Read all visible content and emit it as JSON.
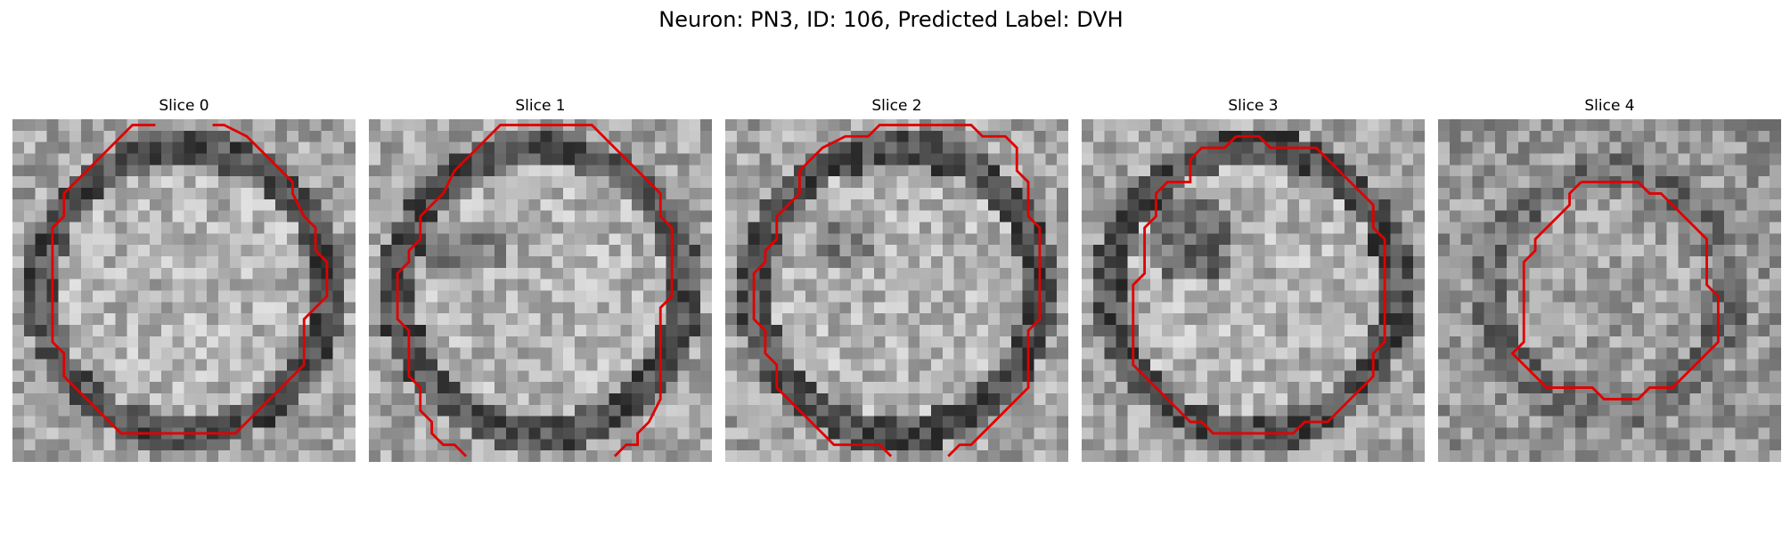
{
  "figure": {
    "title": "Neuron: PN3, ID: 106, Predicted Label: DVH",
    "neuron": "PN3",
    "id": 106,
    "predicted_label": "DVH"
  },
  "slices": [
    {
      "title": "Slice 0",
      "contour_color": "#e00000",
      "seed": 11,
      "style": "ring"
    },
    {
      "title": "Slice 1",
      "contour_color": "#e00000",
      "seed": 29,
      "style": "ring-dark"
    },
    {
      "title": "Slice 2",
      "contour_color": "#e00000",
      "seed": 47,
      "style": "textured"
    },
    {
      "title": "Slice 3",
      "contour_color": "#e00000",
      "seed": 83,
      "style": "dark-blob"
    },
    {
      "title": "Slice 4",
      "contour_color": "#e00000",
      "seed": 97,
      "style": "small"
    }
  ]
}
